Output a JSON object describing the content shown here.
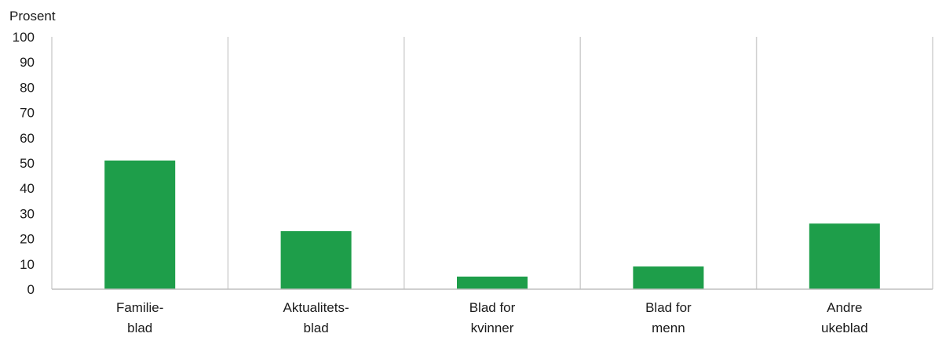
{
  "chart_data": {
    "type": "bar",
    "ylabel": "Prosent",
    "ylim": [
      0,
      100
    ],
    "yticks": [
      0,
      10,
      20,
      30,
      40,
      50,
      60,
      70,
      80,
      90,
      100
    ],
    "categories": [
      [
        "Familie-",
        "blad"
      ],
      [
        "Aktualitets-",
        "blad"
      ],
      [
        "Blad for",
        "kvinner"
      ],
      [
        "Blad for",
        "menn"
      ],
      [
        "Andre",
        "ukeblad"
      ]
    ],
    "values": [
      51,
      23,
      5,
      9,
      26
    ],
    "grid": {
      "horizontal": false,
      "vertical": true
    },
    "colors": {
      "bar": "#1e9e4a",
      "grid": "#d0d0d0",
      "axis": "#bfbfbf",
      "text": "#1a1a1a"
    }
  }
}
